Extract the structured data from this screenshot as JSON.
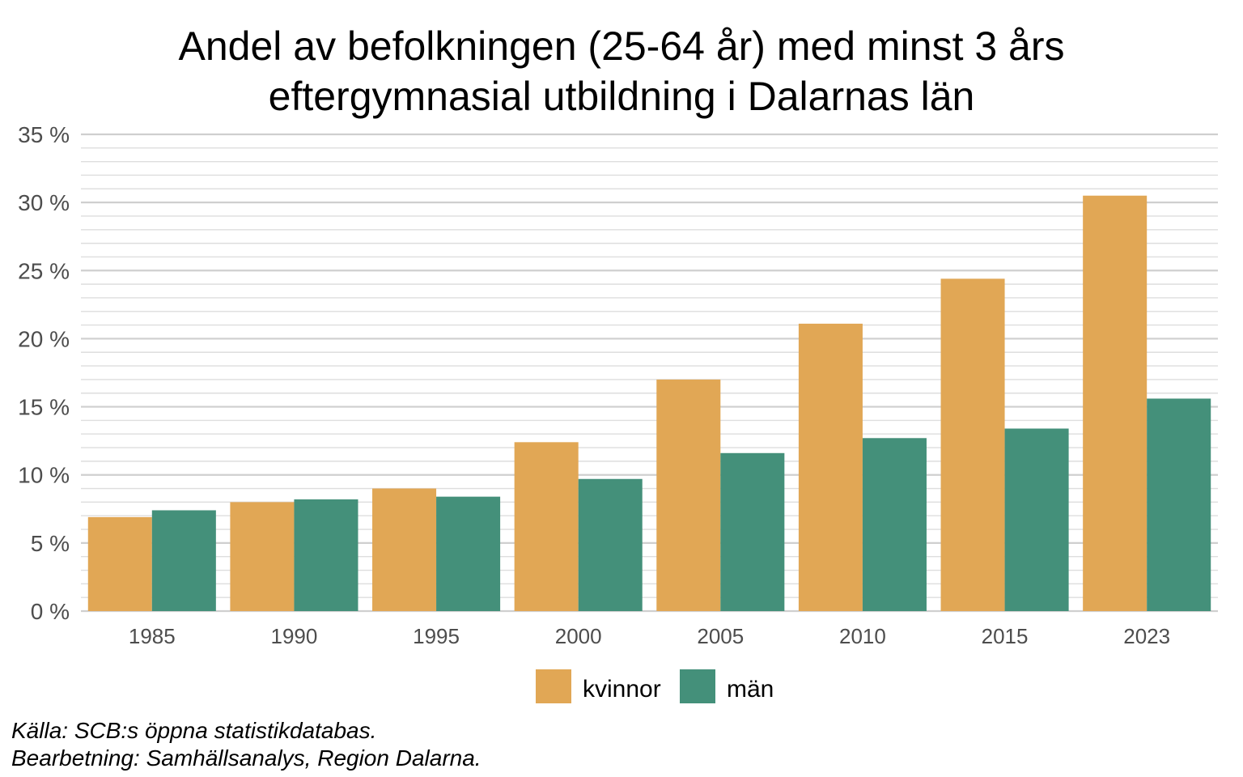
{
  "chart_data": {
    "type": "bar",
    "title_lines": [
      "Andel av befolkningen (25-64 år) med minst 3 års",
      "eftergymnasial utbildning i Dalarnas län"
    ],
    "xlabel": "",
    "ylabel": "",
    "categories": [
      "1985",
      "1990",
      "1995",
      "2000",
      "2005",
      "2010",
      "2015",
      "2023"
    ],
    "series": [
      {
        "name": "kvinnor",
        "color": "#E1A755",
        "values": [
          6.9,
          8.0,
          9.0,
          12.4,
          17.0,
          21.1,
          24.4,
          30.5
        ]
      },
      {
        "name": "män",
        "color": "#44907A",
        "values": [
          7.4,
          8.2,
          8.4,
          9.7,
          11.6,
          12.7,
          13.4,
          15.6
        ]
      }
    ],
    "ylim": [
      0,
      35
    ],
    "yticks": [
      0,
      5,
      10,
      15,
      20,
      25,
      30,
      35
    ],
    "ytick_labels": [
      "0 %",
      "5 %",
      "10 %",
      "15 %",
      "20 %",
      "25 %",
      "30 %",
      "35 %"
    ],
    "minor_grid_step": 1,
    "grid": true,
    "legend_position": "bottom",
    "caption_lines": [
      "Källa: SCB:s öppna statistikdatabas.",
      "Bearbetning: Samhällsanalys, Region Dalarna."
    ]
  }
}
